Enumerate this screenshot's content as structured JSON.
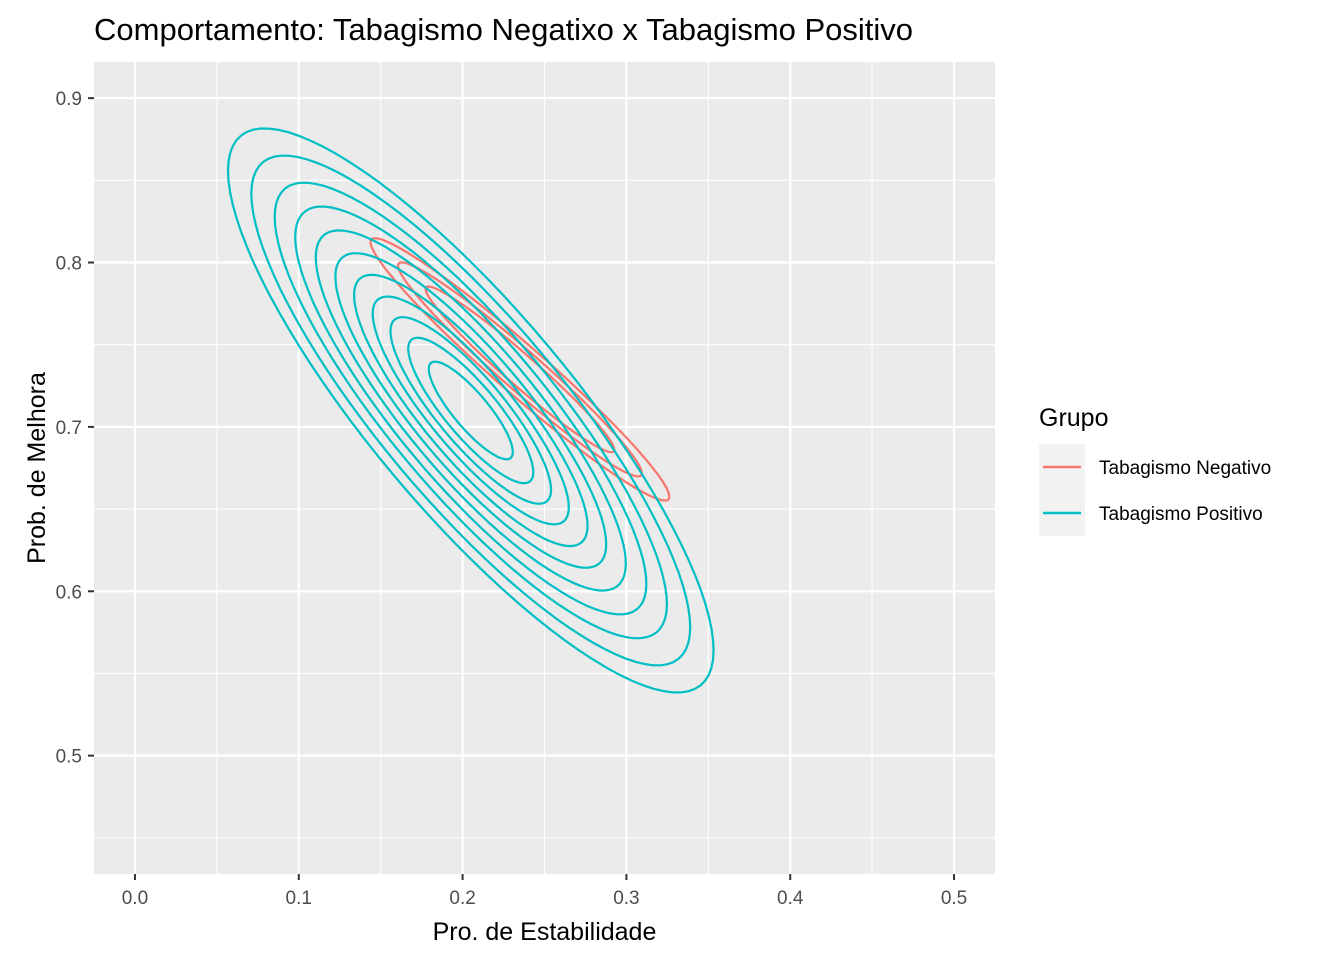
{
  "chart_data": {
    "type": "contour",
    "title": "Comportamento: Tabagismo Negatixo x Tabagismo Positivo",
    "xlabel": "Pro. de Estabilidade",
    "ylabel": "Prob. de Melhora",
    "xlim": [
      -0.025,
      0.525
    ],
    "ylim": [
      0.428,
      0.922
    ],
    "x_ticks": [
      0.0,
      0.1,
      0.2,
      0.3,
      0.4,
      0.5
    ],
    "x_tick_labels": [
      "0.0",
      "0.1",
      "0.2",
      "0.3",
      "0.4",
      "0.5"
    ],
    "y_ticks": [
      0.5,
      0.6,
      0.7,
      0.8,
      0.9
    ],
    "y_tick_labels": [
      "0.5",
      "0.6",
      "0.7",
      "0.8",
      "0.9"
    ],
    "grid": true,
    "legend": {
      "title": "Grupo",
      "placement": "right",
      "entries": [
        "Tabagismo Negativo",
        "Tabagismo Positivo"
      ]
    },
    "series": [
      {
        "name": "Tabagismo Negativo",
        "color": "#F8766D",
        "center": [
          0.235,
          0.735
        ],
        "sigma": [
          0.048,
          0.042
        ],
        "correlation": -0.97,
        "contour_radii": [
          1.9,
          1.55,
          1.2
        ]
      },
      {
        "name": "Tabagismo Positivo",
        "color": "#00BFC4",
        "center": [
          0.205,
          0.71
        ],
        "sigma": [
          0.057,
          0.066
        ],
        "correlation": -0.85,
        "contour_radii": [
          2.6,
          2.35,
          2.1,
          1.88,
          1.66,
          1.45,
          1.25,
          1.05,
          0.86,
          0.67,
          0.45
        ]
      }
    ]
  }
}
